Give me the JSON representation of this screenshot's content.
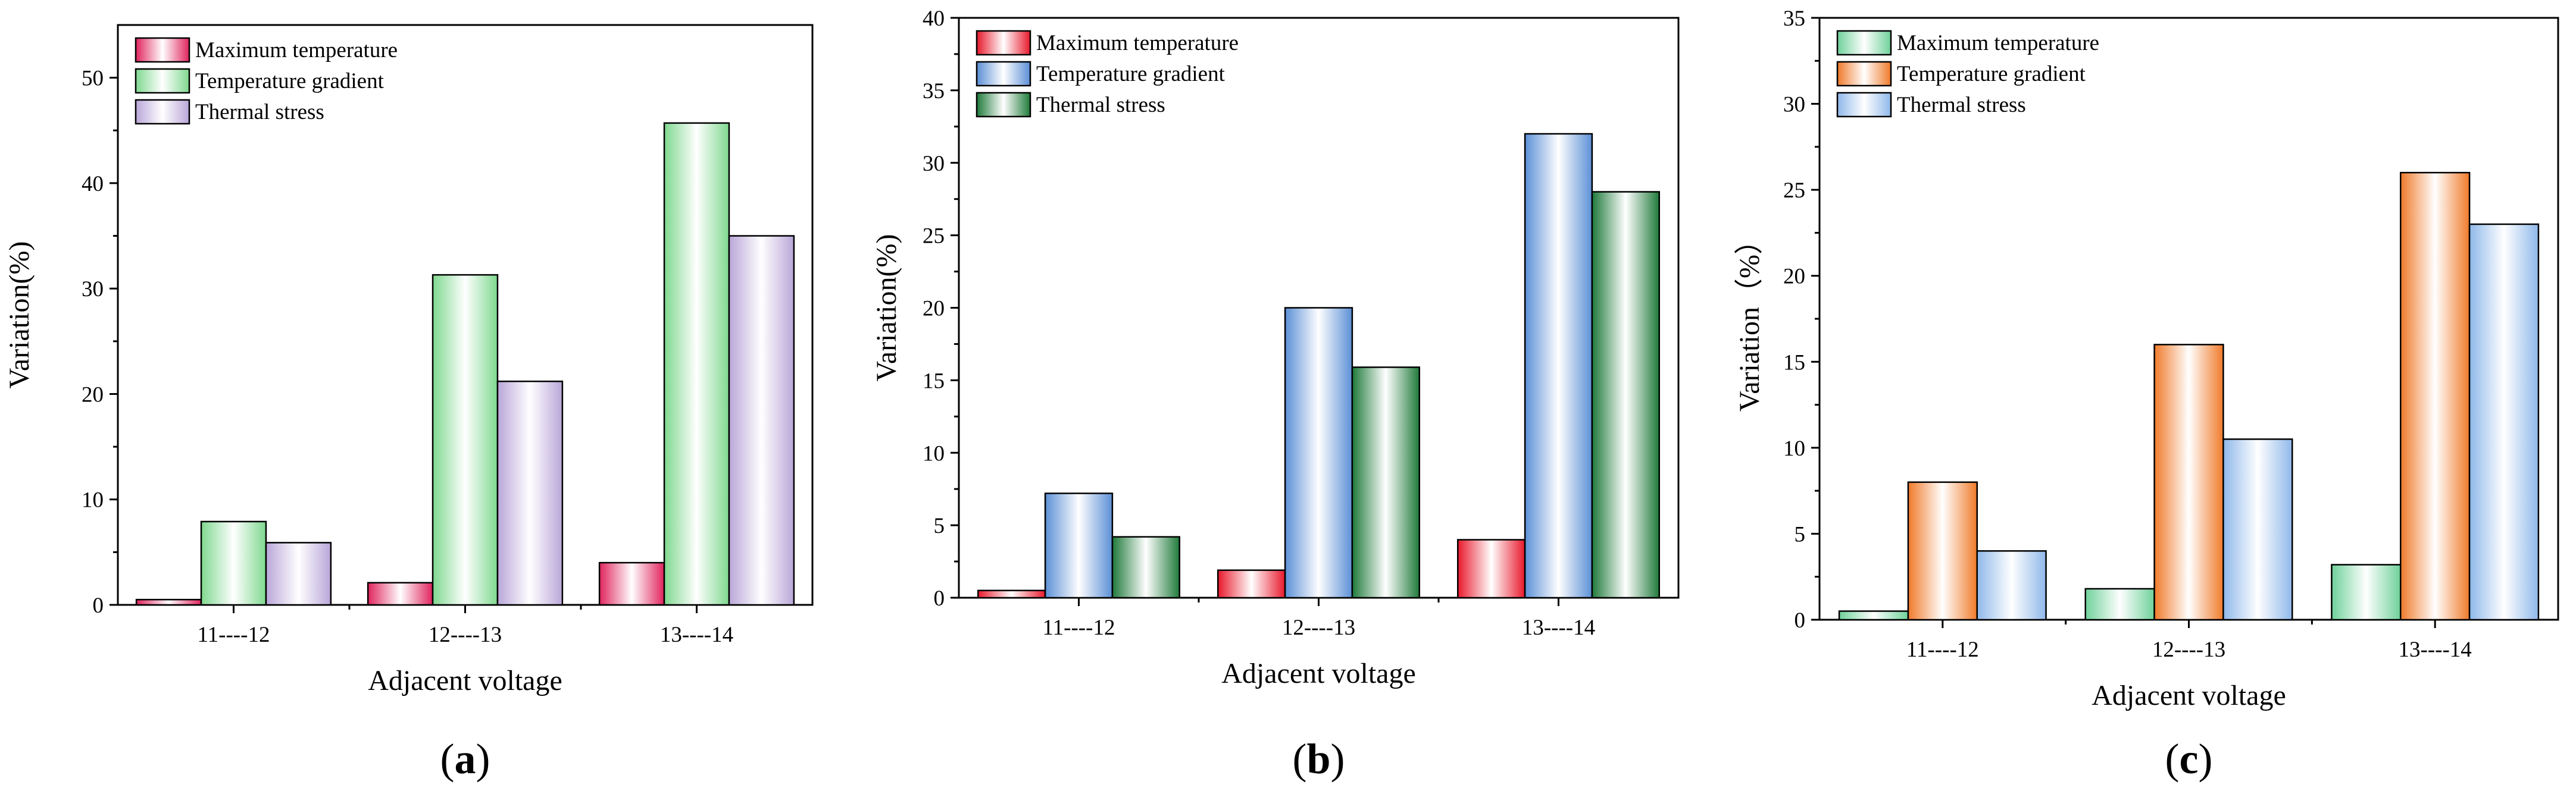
{
  "chart_data": [
    {
      "type": "bar",
      "panel": "(a)",
      "panel_letter": "a",
      "xlabel": "Adjacent voltage",
      "ylabel": "Variation(%)",
      "ylim": [
        0,
        55
      ],
      "yticks": [
        0,
        10,
        20,
        30,
        40,
        50
      ],
      "categories": [
        "11----12",
        "12----13",
        "13----14"
      ],
      "legend_position": "top-left",
      "series": [
        {
          "name": "Maximum temperature",
          "values": [
            0.5,
            2.1,
            4.0
          ],
          "color": "#e0245e"
        },
        {
          "name": "Temperature gradient",
          "values": [
            7.9,
            31.3,
            45.7
          ],
          "color": "#7fd88f"
        },
        {
          "name": "Thermal stress",
          "values": [
            5.9,
            21.2,
            35.0
          ],
          "color": "#b9a6d8"
        }
      ]
    },
    {
      "type": "bar",
      "panel": "(b)",
      "panel_letter": "b",
      "xlabel": "Adjacent voltage",
      "ylabel": "Variation(%)",
      "ylim": [
        0,
        40
      ],
      "yticks": [
        0,
        5,
        10,
        15,
        20,
        25,
        30,
        35,
        40
      ],
      "categories": [
        "11----12",
        "12----13",
        "13----14"
      ],
      "legend_position": "top-left",
      "series": [
        {
          "name": "Maximum temperature",
          "values": [
            0.5,
            1.9,
            4.0
          ],
          "color": "#e8182b"
        },
        {
          "name": "Temperature gradient",
          "values": [
            7.2,
            20.0,
            32.0
          ],
          "color": "#5b8fd6"
        },
        {
          "name": "Thermal stress",
          "values": [
            4.2,
            15.9,
            28.0
          ],
          "color": "#1f7a3a"
        }
      ]
    },
    {
      "type": "bar",
      "panel": "(c)",
      "panel_letter": "c",
      "xlabel": "Adjacent voltage",
      "ylabel": "Variation（%）",
      "ylim": [
        0,
        35
      ],
      "yticks": [
        0,
        5,
        10,
        15,
        20,
        25,
        30,
        35
      ],
      "categories": [
        "11----12",
        "12----13",
        "13----14"
      ],
      "legend_position": "top-left",
      "series": [
        {
          "name": "Maximum temperature",
          "values": [
            0.5,
            1.8,
            3.2
          ],
          "color": "#6fd19a"
        },
        {
          "name": "Temperature gradient",
          "values": [
            8.0,
            16.0,
            26.0
          ],
          "color": "#f07a2a"
        },
        {
          "name": "Thermal stress",
          "values": [
            4.0,
            10.5,
            23.0
          ],
          "color": "#8fb8ea"
        }
      ]
    }
  ]
}
